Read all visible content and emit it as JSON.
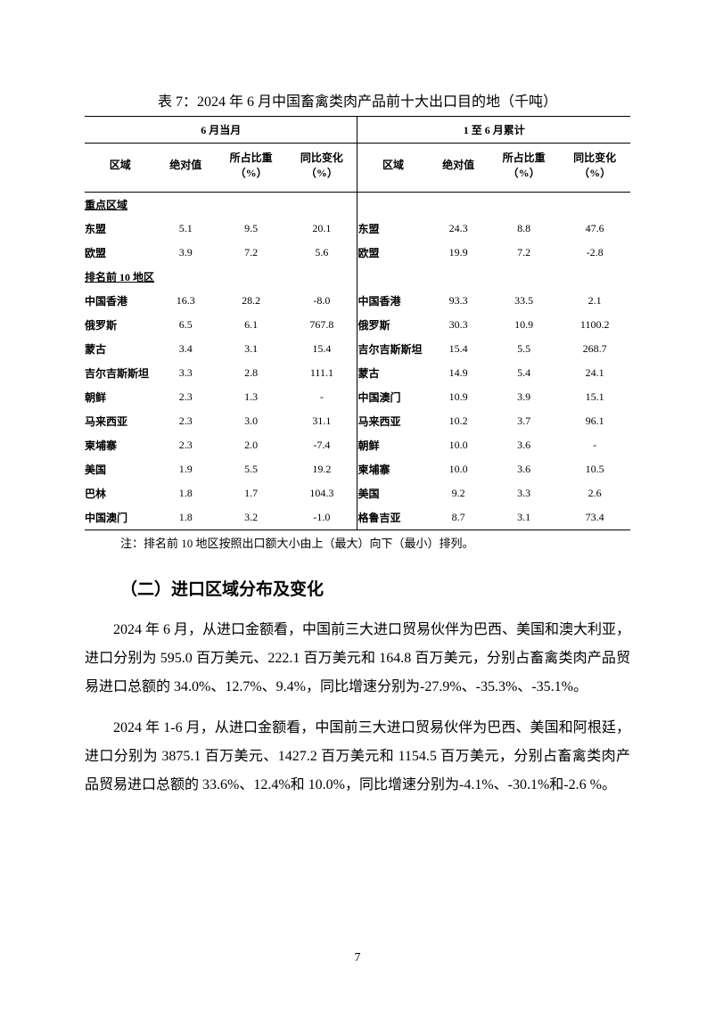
{
  "table": {
    "title": "表 7：2024 年 6 月中国畜禽类肉产品前十大出口目的地（千吨）",
    "group_headers": {
      "left": "6 月当月",
      "right": "1 至 6 月累计"
    },
    "col_headers": {
      "region": "区域",
      "abs": "绝对值",
      "share": "所占比重（%）",
      "yoy": "同比变化（%）"
    },
    "section_key": "重点区域",
    "section_top10": "排名前 10  地区",
    "key_rows": [
      {
        "l_region": "东盟",
        "l_abs": "5.1",
        "l_share": "9.5",
        "l_yoy": "20.1",
        "r_region": "东盟",
        "r_abs": "24.3",
        "r_share": "8.8",
        "r_yoy": "47.6"
      },
      {
        "l_region": "欧盟",
        "l_abs": "3.9",
        "l_share": "7.2",
        "l_yoy": "5.6",
        "r_region": "欧盟",
        "r_abs": "19.9",
        "r_share": "7.2",
        "r_yoy": "-2.8"
      }
    ],
    "top10_rows": [
      {
        "l_region": "中国香港",
        "l_abs": "16.3",
        "l_share": "28.2",
        "l_yoy": "-8.0",
        "r_region": "中国香港",
        "r_abs": "93.3",
        "r_share": "33.5",
        "r_yoy": "2.1"
      },
      {
        "l_region": "俄罗斯",
        "l_abs": "6.5",
        "l_share": "6.1",
        "l_yoy": "767.8",
        "r_region": "俄罗斯",
        "r_abs": "30.3",
        "r_share": "10.9",
        "r_yoy": "1100.2"
      },
      {
        "l_region": "蒙古",
        "l_abs": "3.4",
        "l_share": "3.1",
        "l_yoy": "15.4",
        "r_region": "吉尔吉斯斯坦",
        "r_abs": "15.4",
        "r_share": "5.5",
        "r_yoy": "268.7"
      },
      {
        "l_region": "吉尔吉斯斯坦",
        "l_abs": "3.3",
        "l_share": "2.8",
        "l_yoy": "111.1",
        "r_region": "蒙古",
        "r_abs": "14.9",
        "r_share": "5.4",
        "r_yoy": "24.1"
      },
      {
        "l_region": "朝鲜",
        "l_abs": "2.3",
        "l_share": "1.3",
        "l_yoy": "-",
        "r_region": "中国澳门",
        "r_abs": "10.9",
        "r_share": "3.9",
        "r_yoy": "15.1"
      },
      {
        "l_region": "马来西亚",
        "l_abs": "2.3",
        "l_share": "3.0",
        "l_yoy": "31.1",
        "r_region": "马来西亚",
        "r_abs": "10.2",
        "r_share": "3.7",
        "r_yoy": "96.1"
      },
      {
        "l_region": "柬埔寨",
        "l_abs": "2.3",
        "l_share": "2.0",
        "l_yoy": "-7.4",
        "r_region": "朝鲜",
        "r_abs": "10.0",
        "r_share": "3.6",
        "r_yoy": "-"
      },
      {
        "l_region": "美国",
        "l_abs": "1.9",
        "l_share": "5.5",
        "l_yoy": "19.2",
        "r_region": "柬埔寨",
        "r_abs": "10.0",
        "r_share": "3.6",
        "r_yoy": "10.5"
      },
      {
        "l_region": "巴林",
        "l_abs": "1.8",
        "l_share": "1.7",
        "l_yoy": "104.3",
        "r_region": "美国",
        "r_abs": "9.2",
        "r_share": "3.3",
        "r_yoy": "2.6"
      },
      {
        "l_region": "中国澳门",
        "l_abs": "1.8",
        "l_share": "3.2",
        "l_yoy": "-1.0",
        "r_region": "格鲁吉亚",
        "r_abs": "8.7",
        "r_share": "3.1",
        "r_yoy": "73.4"
      }
    ],
    "note": "注：排名前 10 地区按照出口额大小由上（最大）向下（最小）排列。"
  },
  "section_heading": "（二）进口区域分布及变化",
  "paragraphs": {
    "p1": "2024 年 6 月，从进口金额看，中国前三大进口贸易伙伴为巴西、美国和澳大利亚，进口分别为 595.0 百万美元、222.1 百万美元和 164.8 百万美元，分别占畜禽类肉产品贸易进口总额的 34.0%、12.7%、9.4%，同比增速分别为-27.9%、-35.3%、-35.1%。",
    "p2": "2024 年 1-6 月，从进口金额看，中国前三大进口贸易伙伴为巴西、美国和阿根廷，进口分别为 3875.1 百万美元、1427.2 百万美元和 1154.5 百万美元，分别占畜禽类肉产品贸易进口总额的 33.6%、12.4%和 10.0%，同比增速分别为-4.1%、-30.1%和-2.6 %。"
  },
  "page_number": "7"
}
